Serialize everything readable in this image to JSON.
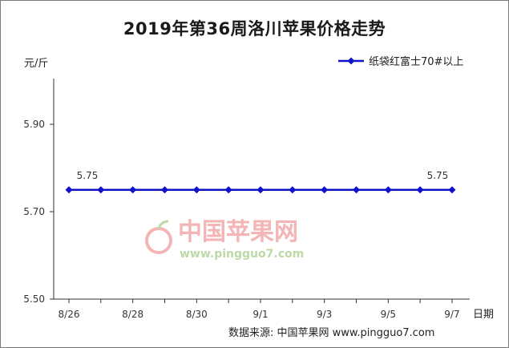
{
  "chart_data": {
    "type": "line",
    "title": "2019年第36周洛川苹果价格走势",
    "ylabel": "元/斤",
    "xlabel": "日期",
    "ylim": [
      5.5,
      5.9
    ],
    "yticks": [
      "5.50",
      "5.70",
      "5.90"
    ],
    "x": [
      "8/26",
      "8/27",
      "8/28",
      "8/29",
      "8/30",
      "8/31",
      "9/1",
      "9/2",
      "9/3",
      "9/4",
      "9/5",
      "9/6",
      "9/7"
    ],
    "xtick_labels": [
      "8/26",
      "8/28",
      "8/30",
      "9/1",
      "9/3",
      "9/5",
      "9/7"
    ],
    "series": [
      {
        "name": "纸袋红富士70#以上",
        "values": [
          5.75,
          5.75,
          5.75,
          5.75,
          5.75,
          5.75,
          5.75,
          5.75,
          5.75,
          5.75,
          5.75,
          5.75,
          5.75
        ],
        "color": "#1111cc"
      }
    ],
    "data_labels": [
      {
        "index": 0,
        "text": "5.75"
      },
      {
        "index": 12,
        "text": "5.75"
      }
    ],
    "grid": false,
    "legend_position": "top-right"
  },
  "watermark": {
    "text": "中国苹果网",
    "url": "www.pingguo7.com",
    "logo_icon": "apple-logo-icon"
  },
  "source": "数据来源: 中国苹果网 www.pingguo7.com"
}
